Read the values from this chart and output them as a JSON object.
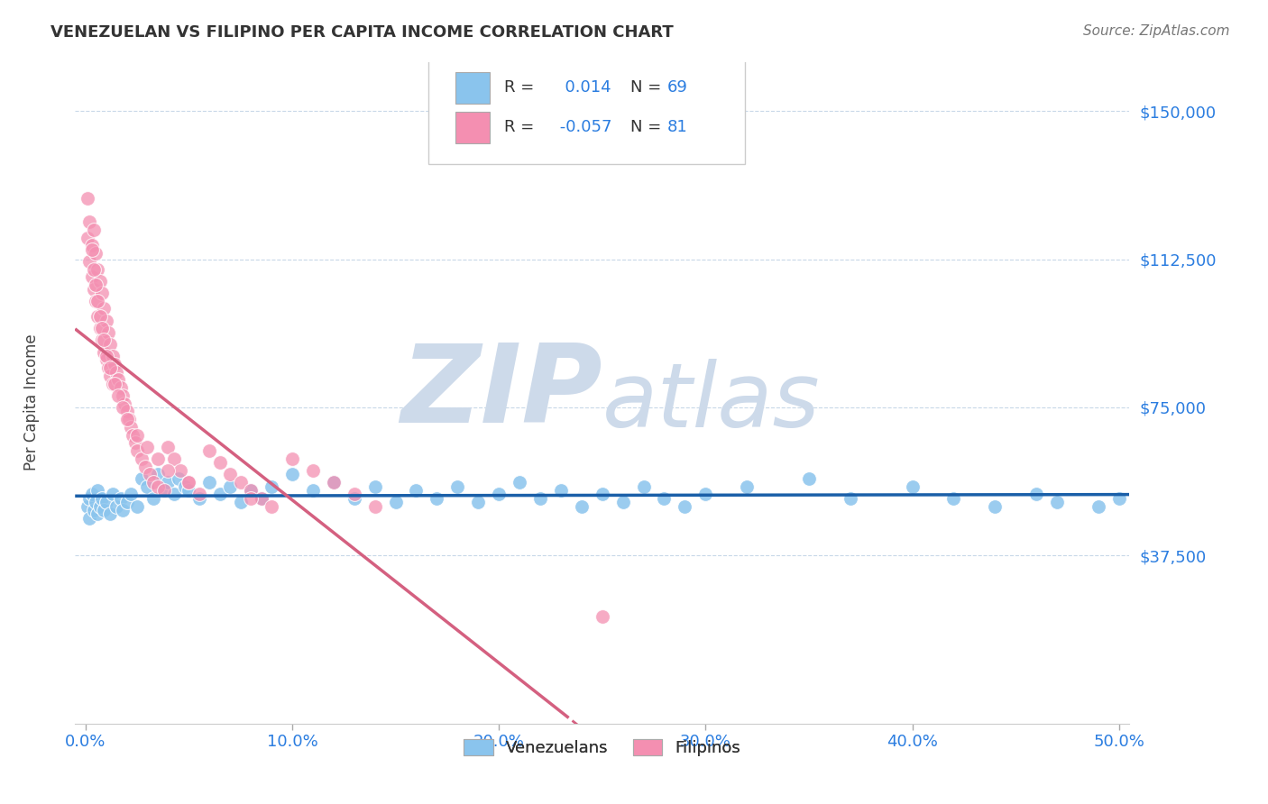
{
  "title": "VENEZUELAN VS FILIPINO PER CAPITA INCOME CORRELATION CHART",
  "source": "Source: ZipAtlas.com",
  "ylabel": "Per Capita Income",
  "xlabel_ticks": [
    "0.0%",
    "10.0%",
    "20.0%",
    "30.0%",
    "40.0%",
    "50.0%"
  ],
  "xlabel_vals": [
    0.0,
    0.1,
    0.2,
    0.3,
    0.4,
    0.5
  ],
  "ytick_labels": [
    "$37,500",
    "$75,000",
    "$112,500",
    "$150,000"
  ],
  "ytick_vals": [
    37500,
    75000,
    112500,
    150000
  ],
  "ylim": [
    -5000,
    162500
  ],
  "xlim": [
    -0.005,
    0.505
  ],
  "R_venezuelan": 0.014,
  "N_venezuelan": 69,
  "R_filipino": -0.057,
  "N_filipino": 81,
  "color_venezuelan": "#8ac4ed",
  "color_filipino": "#f48fb1",
  "line_color_venezuelan": "#1a5fa8",
  "line_color_filipino": "#d46080",
  "watermark_zip": "ZIP",
  "watermark_atlas": "atlas",
  "watermark_color": "#cddaea",
  "background_color": "#ffffff",
  "venezuelan_x": [
    0.001,
    0.002,
    0.002,
    0.003,
    0.004,
    0.005,
    0.006,
    0.006,
    0.007,
    0.008,
    0.009,
    0.01,
    0.012,
    0.013,
    0.015,
    0.017,
    0.018,
    0.02,
    0.022,
    0.025,
    0.027,
    0.03,
    0.033,
    0.035,
    0.038,
    0.04,
    0.043,
    0.045,
    0.048,
    0.05,
    0.055,
    0.06,
    0.065,
    0.07,
    0.075,
    0.08,
    0.085,
    0.09,
    0.1,
    0.11,
    0.12,
    0.13,
    0.14,
    0.15,
    0.16,
    0.17,
    0.18,
    0.19,
    0.2,
    0.21,
    0.22,
    0.23,
    0.24,
    0.25,
    0.26,
    0.27,
    0.28,
    0.29,
    0.3,
    0.32,
    0.35,
    0.37,
    0.4,
    0.42,
    0.44,
    0.46,
    0.47,
    0.49,
    0.5
  ],
  "venezuelan_y": [
    50000,
    52000,
    47000,
    53000,
    49000,
    51000,
    48000,
    54000,
    50000,
    52000,
    49000,
    51000,
    48000,
    53000,
    50000,
    52000,
    49000,
    51000,
    53000,
    50000,
    57000,
    55000,
    52000,
    58000,
    54000,
    56000,
    53000,
    57000,
    55000,
    54000,
    52000,
    56000,
    53000,
    55000,
    51000,
    54000,
    52000,
    55000,
    58000,
    54000,
    56000,
    52000,
    55000,
    51000,
    54000,
    52000,
    55000,
    51000,
    53000,
    56000,
    52000,
    54000,
    50000,
    53000,
    51000,
    55000,
    52000,
    50000,
    53000,
    55000,
    57000,
    52000,
    55000,
    52000,
    50000,
    53000,
    51000,
    50000,
    52000
  ],
  "filipino_x": [
    0.001,
    0.001,
    0.002,
    0.002,
    0.003,
    0.003,
    0.004,
    0.004,
    0.005,
    0.005,
    0.006,
    0.006,
    0.007,
    0.007,
    0.008,
    0.008,
    0.009,
    0.009,
    0.01,
    0.01,
    0.011,
    0.011,
    0.012,
    0.012,
    0.013,
    0.013,
    0.014,
    0.015,
    0.016,
    0.017,
    0.018,
    0.019,
    0.02,
    0.021,
    0.022,
    0.023,
    0.024,
    0.025,
    0.027,
    0.029,
    0.031,
    0.033,
    0.035,
    0.038,
    0.04,
    0.043,
    0.046,
    0.05,
    0.055,
    0.06,
    0.065,
    0.07,
    0.075,
    0.08,
    0.085,
    0.09,
    0.1,
    0.11,
    0.12,
    0.13,
    0.003,
    0.004,
    0.005,
    0.006,
    0.007,
    0.008,
    0.009,
    0.01,
    0.012,
    0.014,
    0.016,
    0.018,
    0.02,
    0.025,
    0.03,
    0.035,
    0.04,
    0.05,
    0.08,
    0.14,
    0.25
  ],
  "filipino_y": [
    128000,
    118000,
    122000,
    112000,
    116000,
    108000,
    120000,
    105000,
    114000,
    102000,
    110000,
    98000,
    107000,
    95000,
    104000,
    92000,
    100000,
    89000,
    97000,
    87000,
    94000,
    85000,
    91000,
    83000,
    88000,
    81000,
    86000,
    84000,
    82000,
    80000,
    78000,
    76000,
    74000,
    72000,
    70000,
    68000,
    66000,
    64000,
    62000,
    60000,
    58000,
    56000,
    55000,
    54000,
    65000,
    62000,
    59000,
    56000,
    53000,
    64000,
    61000,
    58000,
    56000,
    54000,
    52000,
    50000,
    62000,
    59000,
    56000,
    53000,
    115000,
    110000,
    106000,
    102000,
    98000,
    95000,
    92000,
    88000,
    85000,
    81000,
    78000,
    75000,
    72000,
    68000,
    65000,
    62000,
    59000,
    56000,
    52000,
    50000,
    22000
  ]
}
